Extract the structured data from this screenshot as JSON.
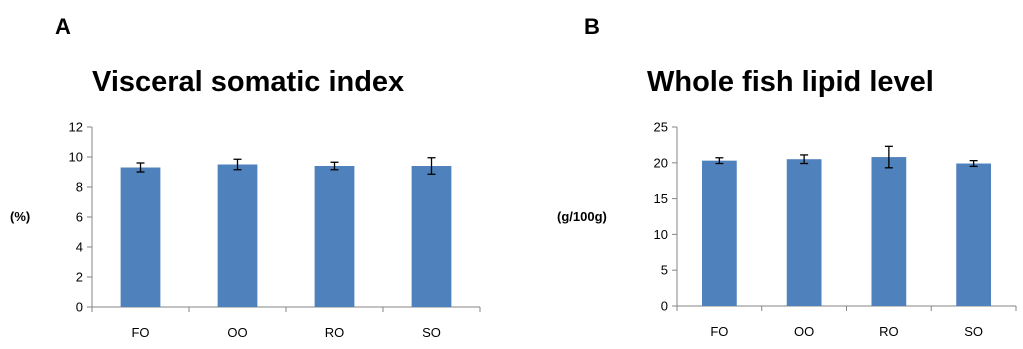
{
  "panels": [
    {
      "letter": "A",
      "chart_data": {
        "type": "bar",
        "title": "Visceral somatic index",
        "ylabel": "(%)",
        "xlabel": "",
        "categories": [
          "FO",
          "OO",
          "RO",
          "SO"
        ],
        "values": [
          9.3,
          9.5,
          9.4,
          9.4
        ],
        "errors": [
          0.3,
          0.35,
          0.25,
          0.55
        ],
        "ylim": [
          0,
          12
        ],
        "yticks": [
          0,
          2,
          4,
          6,
          8,
          10,
          12
        ],
        "bar_color": "#4f81bd",
        "grid": false,
        "legend": "none"
      }
    },
    {
      "letter": "B",
      "chart_data": {
        "type": "bar",
        "title": "Whole fish lipid level",
        "ylabel": "(g/100g)",
        "xlabel": "",
        "categories": [
          "FO",
          "OO",
          "RO",
          "SO"
        ],
        "values": [
          20.3,
          20.5,
          20.8,
          19.9
        ],
        "errors": [
          0.4,
          0.6,
          1.5,
          0.4
        ],
        "ylim": [
          0,
          25
        ],
        "yticks": [
          0,
          5,
          10,
          15,
          20,
          25
        ],
        "bar_color": "#4f81bd",
        "grid": false,
        "legend": "none"
      }
    }
  ]
}
